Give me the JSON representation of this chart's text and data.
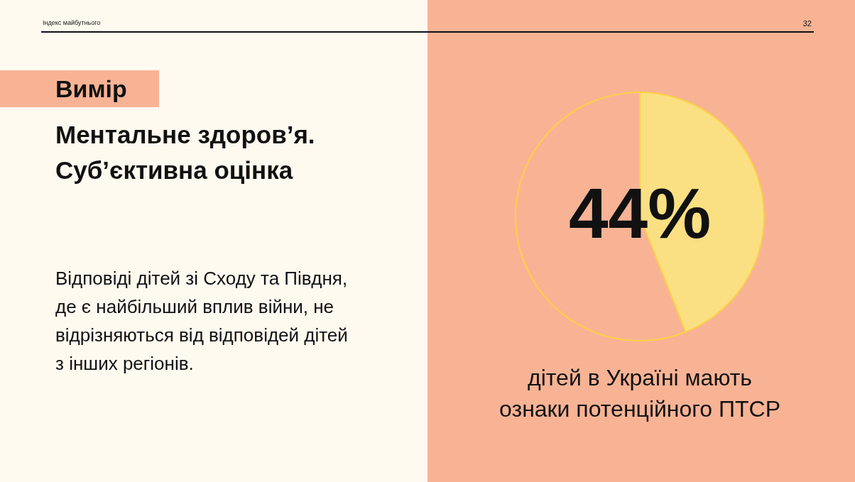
{
  "chart_data": {
    "type": "pie",
    "title": "Ментальне здоров’я. Суб’єктивна оцінка",
    "categories": [
      null,
      null
    ],
    "values": [
      44,
      56
    ],
    "colors": [
      "#fae082",
      "#f8b395"
    ],
    "value_labels": [
      "44%",
      null
    ],
    "annotations": [
      "Індекс майбутнього",
      "32",
      "Вимір",
      "Відповіді дітей зі Сходу та Півдня, де є найбільший вплив війни, не відрізняються від відповідей дітей з інших регіонів.",
      "дітей в Україні мають ознаки потенційного ПТСР"
    ]
  }
}
